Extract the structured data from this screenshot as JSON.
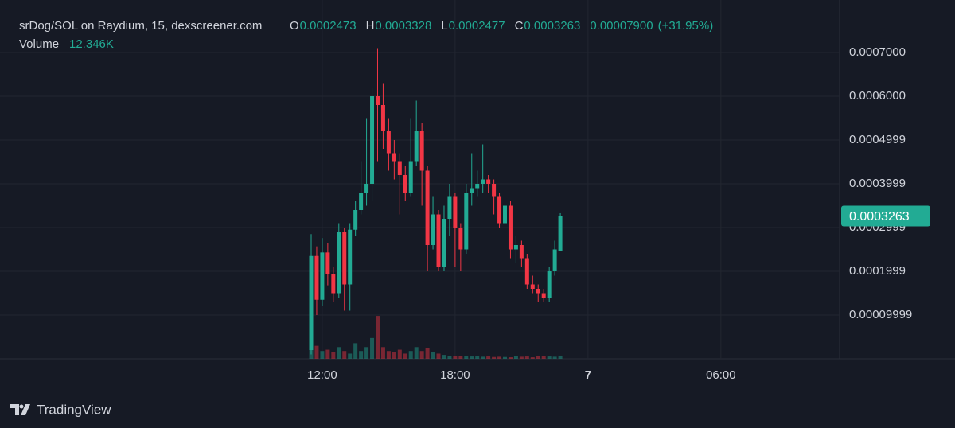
{
  "chart_data": {
    "type": "candlestick",
    "title": "srDog/SOL on Raydium, 15, dexscreener.com",
    "ohlc_labels": [
      "O",
      "H",
      "L",
      "C"
    ],
    "change": "0.00007900",
    "change_percent": "(+31.95%)",
    "volume_label": "Volume",
    "volume_value": "12.346K",
    "brand": "TradingView",
    "up_color": "#22ab94",
    "down_color": "#f23645",
    "x": [
      11.5,
      11.75,
      12,
      12.25,
      12.5,
      12.75,
      13,
      13.25,
      13.5,
      13.75,
      14,
      14.25,
      14.5,
      14.75,
      15,
      15.25,
      15.5,
      15.75,
      16,
      16.25,
      16.5,
      16.75,
      17,
      17.25,
      17.5,
      17.75,
      18,
      18.25,
      18.5,
      18.75,
      19,
      19.25,
      19.5,
      19.75,
      20,
      20.25,
      20.5,
      20.75,
      21,
      21.25,
      21.5,
      21.75,
      22,
      22.25,
      22.5,
      22.75
    ],
    "open": [
      2e-05,
      0.000235,
      0.000135,
      0.000243,
      0.000193,
      0.00015,
      0.00029,
      0.00017,
      0.000295,
      0.00034,
      0.00038,
      0.0004,
      0.0006,
      0.00058,
      0.00052,
      0.00047,
      0.00045,
      0.00042,
      0.00038,
      0.00045,
      0.00052,
      0.00043,
      0.00026,
      0.00033,
      0.00021,
      0.00032,
      0.00037,
      0.0003,
      0.00025,
      0.00038,
      0.00039,
      0.0004,
      0.00041,
      0.0004,
      0.00037,
      0.00031,
      0.00035,
      0.00025,
      0.00026,
      0.00023,
      0.00017,
      0.00016,
      0.00015,
      0.00014,
      0.0002,
      0.0002473
    ],
    "high": [
      0.000285,
      0.000257,
      0.000276,
      0.000265,
      0.00021,
      0.00031,
      0.0003,
      0.00031,
      0.00036,
      0.00045,
      0.00055,
      0.00062,
      0.00071,
      0.00063,
      0.00055,
      0.0005,
      0.00047,
      0.00044,
      0.00055,
      0.00059,
      0.00054,
      0.00044,
      0.00037,
      0.00034,
      0.00035,
      0.0004,
      0.00038,
      0.00031,
      0.0004,
      0.00047,
      0.00043,
      0.00049,
      0.00042,
      0.00041,
      0.00038,
      0.00036,
      0.00036,
      0.00028,
      0.00027,
      0.00024,
      0.00019,
      0.00017,
      0.00016,
      0.00021,
      0.00027,
      0.0003328
    ],
    "low": [
      1e-05,
      0.0001,
      0.00012,
      0.000168,
      0.00013,
      0.00014,
      0.00011,
      0.00011,
      0.00028,
      0.00033,
      0.00035,
      0.00036,
      0.00045,
      0.00048,
      0.00043,
      0.00041,
      0.00033,
      0.00036,
      0.00037,
      0.00044,
      0.00035,
      0.0002,
      0.00025,
      0.0002,
      0.0002,
      0.00028,
      0.00021,
      0.0002,
      0.00024,
      0.00035,
      0.00037,
      0.00038,
      0.00038,
      0.00033,
      0.0003,
      0.0003,
      0.00023,
      0.00022,
      0.00021,
      0.00016,
      0.00015,
      0.00013,
      0.00013,
      0.00013,
      0.00019,
      0.0002477
    ],
    "close": [
      0.000235,
      0.000135,
      0.000243,
      0.000193,
      0.00015,
      0.00029,
      0.00017,
      0.000295,
      0.00034,
      0.00038,
      0.0004,
      0.0006,
      0.00058,
      0.00052,
      0.00047,
      0.00045,
      0.00042,
      0.00038,
      0.00045,
      0.00052,
      0.00043,
      0.00026,
      0.00033,
      0.00021,
      0.00032,
      0.00037,
      0.0003,
      0.00025,
      0.00038,
      0.00039,
      0.0004,
      0.00041,
      0.0004,
      0.00037,
      0.00031,
      0.00035,
      0.00025,
      0.00026,
      0.00023,
      0.00017,
      0.00016,
      0.00015,
      0.00014,
      0.0002,
      0.00025,
      0.0003263
    ],
    "volume": [
      100000,
      50000,
      30000,
      35000,
      25000,
      45000,
      30000,
      20000,
      60000,
      30000,
      45000,
      80000,
      165000,
      45000,
      30000,
      25000,
      35000,
      20000,
      30000,
      45000,
      30000,
      40000,
      25000,
      20000,
      15000,
      12000,
      10000,
      12000,
      10000,
      9000,
      10000,
      8000,
      9000,
      7000,
      8000,
      7000,
      6000,
      12000,
      8000,
      9000,
      6000,
      10000,
      12000,
      9000,
      8000,
      12346
    ],
    "volume_ylim": [
      0,
      1380000
    ],
    "xlim": [
      -2.55,
      35.36
    ],
    "xticks": [
      {
        "value": 12,
        "label": "12:00"
      },
      {
        "value": 18,
        "label": "18:00"
      },
      {
        "value": 24,
        "label": "7"
      },
      {
        "value": 30,
        "label": "06:00"
      }
    ],
    "ylim": [
      0,
      0.00082
    ],
    "yticks": [
      {
        "value": 9.999e-05,
        "label": "0.00009999"
      },
      0.0001999,
      0.0002999,
      0.0003999,
      0.0004999,
      {
        "value": 0.0006,
        "label": "0.0006000"
      },
      {
        "value": 0.0007,
        "label": "0.0007000"
      }
    ],
    "grid": true
  }
}
